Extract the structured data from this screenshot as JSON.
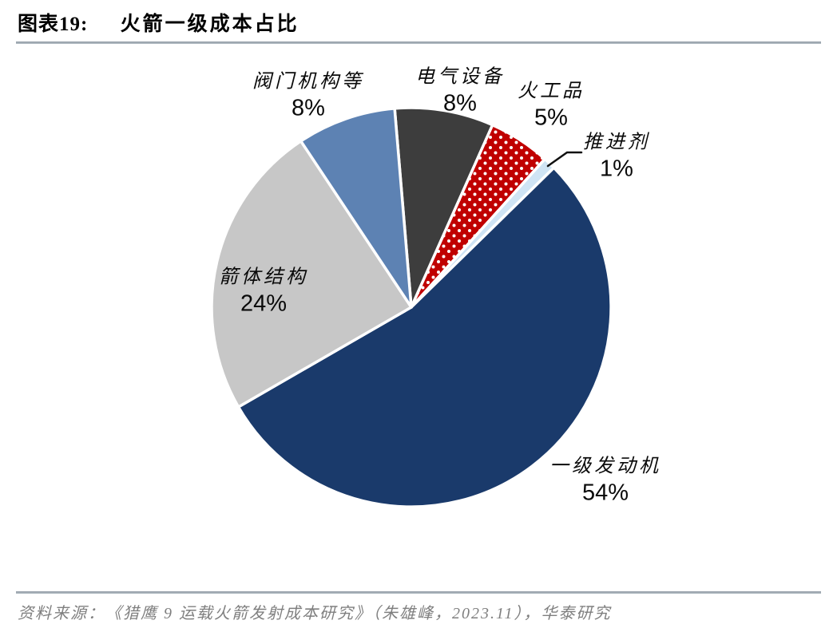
{
  "header": {
    "figure_label": "图表19:",
    "title": "火箭一级成本占比"
  },
  "chart_data": {
    "type": "pie",
    "title": "火箭一级成本占比",
    "unit": "%",
    "direction": "clockwise",
    "start_angle_deg": -4.8,
    "center": [
      515,
      385
    ],
    "radius": 250,
    "slice_border_color": "#ffffff",
    "slices": [
      {
        "label": "电气设备",
        "value": 8,
        "pct_label": "8%",
        "color": "#3d3d3d",
        "pattern": null
      },
      {
        "label": "火工品",
        "value": 5,
        "pct_label": "5%",
        "color": "#c00000",
        "pattern": "white-dots"
      },
      {
        "label": "推进剂",
        "value": 1,
        "pct_label": "1%",
        "color": "#cfe4f4",
        "pattern": null
      },
      {
        "label": "一级发动机",
        "value": 54,
        "pct_label": "54%",
        "color": "#1a3a6b",
        "pattern": null
      },
      {
        "label": "箭体结构",
        "value": 24,
        "pct_label": "24%",
        "color": "#c7c7c7",
        "pattern": null
      },
      {
        "label": "阀门机构等",
        "value": 8,
        "pct_label": "8%",
        "color": "#5d82b3",
        "pattern": null
      }
    ]
  },
  "footer": {
    "source_label": "资料来源：",
    "source_text": "《猎鹰 9 运载火箭发射成本研究》（朱雄峰，2023.11），华泰研究"
  }
}
